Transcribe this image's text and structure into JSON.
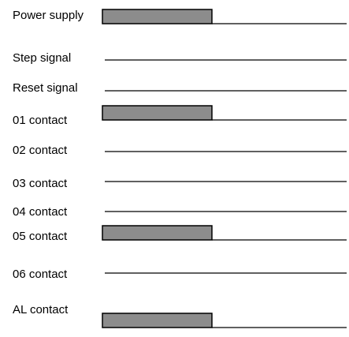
{
  "diagram": {
    "rows": [
      {
        "label": "Power supply",
        "on": true
      },
      {
        "label": "Step signal",
        "on": false
      },
      {
        "label": "Reset signal",
        "on": false
      },
      {
        "label": "01 contact",
        "on": true
      },
      {
        "label": "02 contact",
        "on": false
      },
      {
        "label": "03 contact",
        "on": false
      },
      {
        "label": "04 contact",
        "on": false
      },
      {
        "label": "05 contact",
        "on": true
      },
      {
        "label": "06 contact",
        "on": false
      },
      {
        "label": "AL contact",
        "on": true
      }
    ],
    "colors": {
      "pulse_fill": "#8c8c8c",
      "line": "#000000"
    }
  }
}
